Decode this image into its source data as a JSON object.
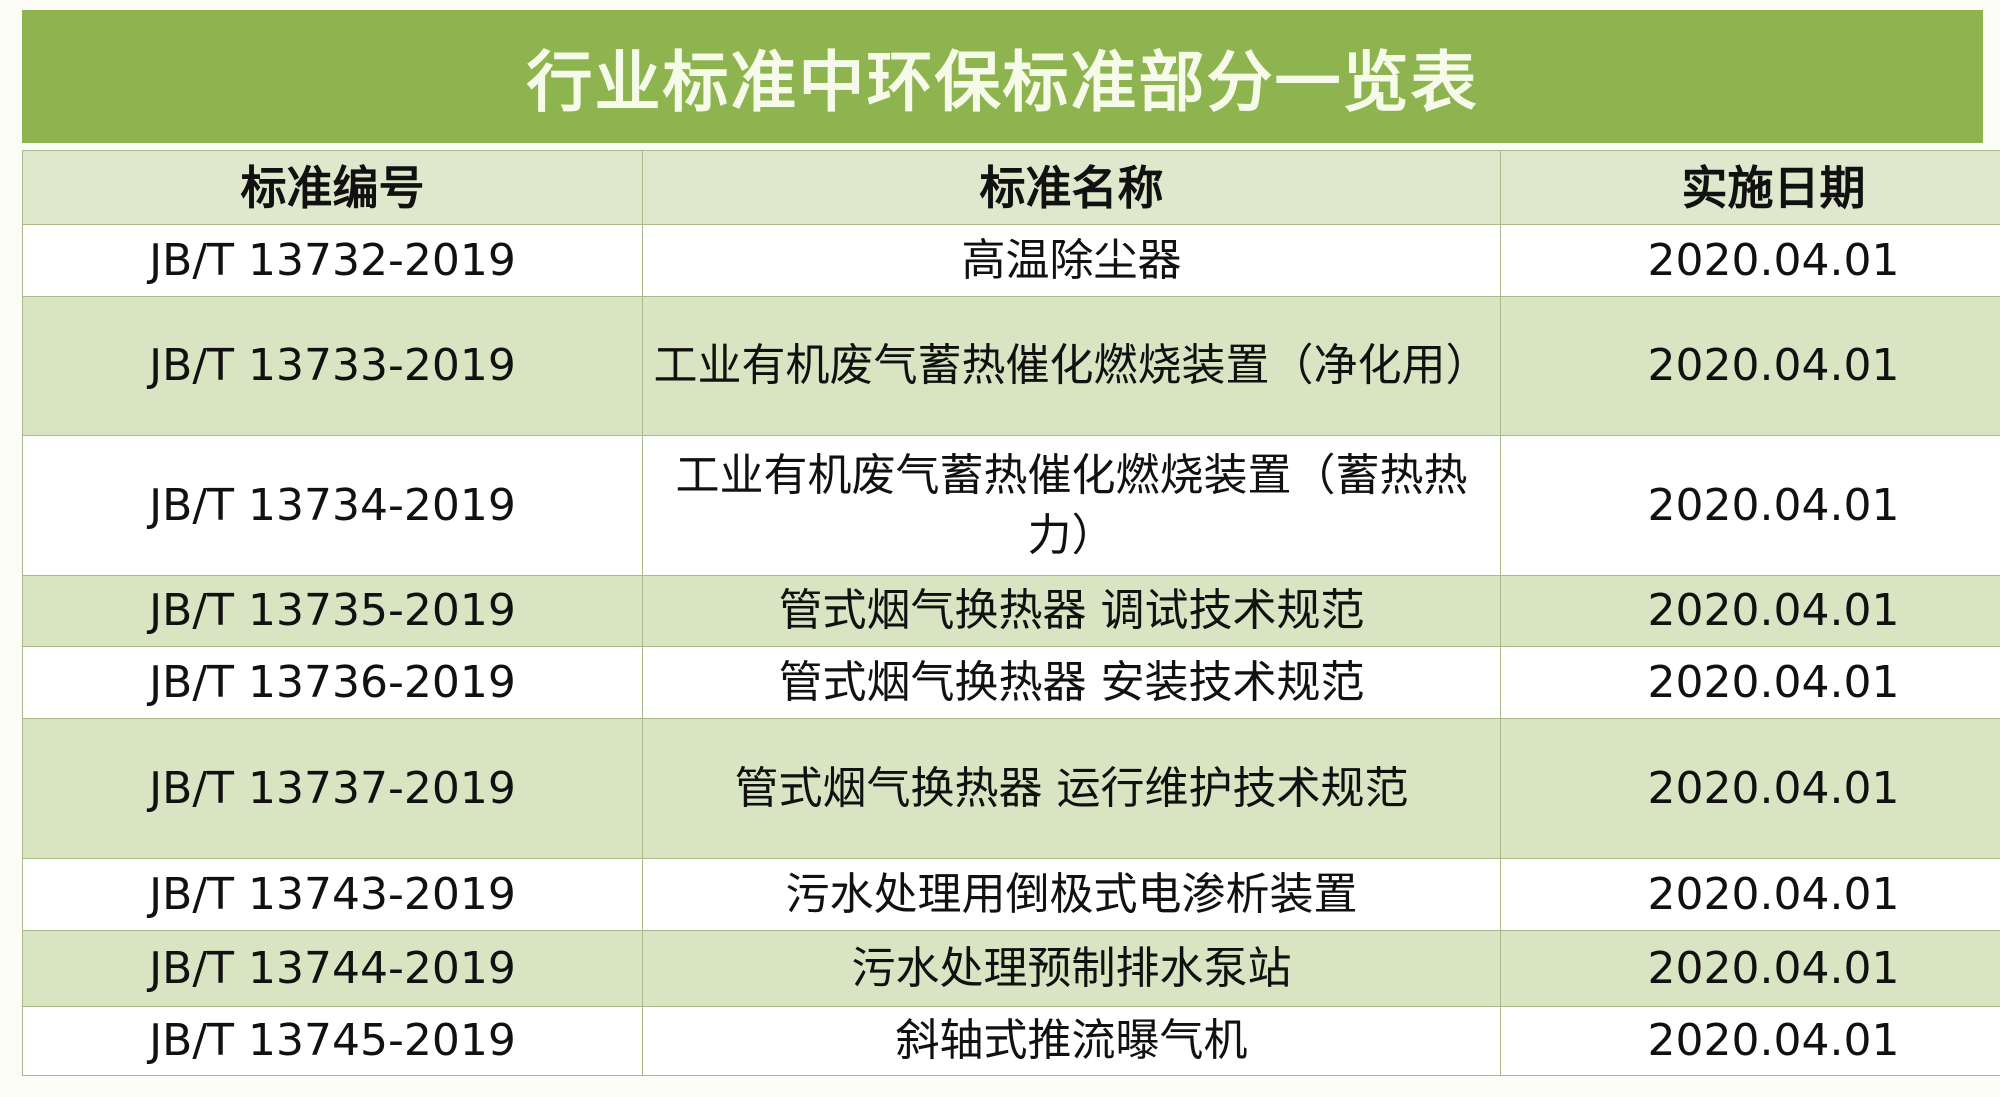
{
  "title": "行业标准中环保标准部分一览表",
  "columns": [
    "标准编号",
    "标准名称",
    "实施日期"
  ],
  "rows": [
    {
      "code": "JB/T 13732-2019",
      "name": "高温除尘器",
      "date": "2020.04.01"
    },
    {
      "code": "JB/T 13733-2019",
      "name": "工业有机废气蓄热催化燃烧装置（净化用）",
      "date": "2020.04.01"
    },
    {
      "code": "JB/T 13734-2019",
      "name": "工业有机废气蓄热催化燃烧装置（蓄热热力）",
      "date": "2020.04.01"
    },
    {
      "code": "JB/T 13735-2019",
      "name": "管式烟气换热器 调试技术规范",
      "date": "2020.04.01"
    },
    {
      "code": "JB/T 13736-2019",
      "name": "管式烟气换热器 安装技术规范",
      "date": "2020.04.01"
    },
    {
      "code": "JB/T 13737-2019",
      "name": "管式烟气换热器 运行维护技术规范",
      "date": "2020.04.01"
    },
    {
      "code": "JB/T 13743-2019",
      "name": "污水处理用倒极式电渗析装置",
      "date": "2020.04.01"
    },
    {
      "code": "JB/T 13744-2019",
      "name": "污水处理预制排水泵站",
      "date": "2020.04.01"
    },
    {
      "code": "JB/T 13745-2019",
      "name": "斜轴式推流曝气机",
      "date": "2020.04.01"
    }
  ]
}
